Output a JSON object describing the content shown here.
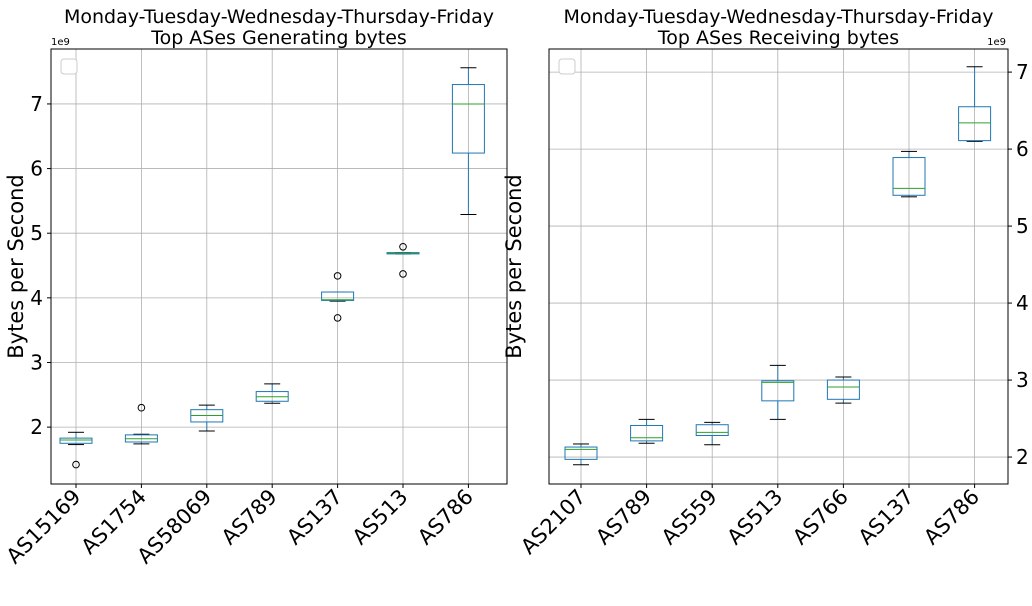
{
  "chart_data": [
    {
      "type": "box",
      "title": "Monday-Tuesday-Wednesday-Thursday-Friday\nTop ASes Generating bytes",
      "title_lines": [
        "Monday-Tuesday-Wednesday-Thursday-Friday",
        "Top ASes Generating bytes"
      ],
      "xlabel": "",
      "ylabel": "Bytes per Second",
      "y_scale_label": "1e9",
      "y_axis_side": "left",
      "ylim": [
        1.12,
        7.85
      ],
      "yticks": [
        2,
        3,
        4,
        5,
        6,
        7
      ],
      "ytick_labels": [
        "2",
        "3",
        "4",
        "5",
        "6",
        "7"
      ],
      "grid": true,
      "legend": "top-left (empty)",
      "categories": [
        "AS15169",
        "AS1754",
        "AS58069",
        "AS789",
        "AS137",
        "AS513",
        "AS786"
      ],
      "boxes": [
        {
          "whislo": 1.73,
          "q1": 1.75,
          "med": 1.8,
          "q3": 1.83,
          "whishi": 1.92,
          "fliers": [
            1.42
          ]
        },
        {
          "whislo": 1.74,
          "q1": 1.77,
          "med": 1.82,
          "q3": 1.88,
          "whishi": 1.89,
          "fliers": [
            2.3
          ]
        },
        {
          "whislo": 1.94,
          "q1": 2.08,
          "med": 2.18,
          "q3": 2.27,
          "whishi": 2.34,
          "fliers": []
        },
        {
          "whislo": 2.37,
          "q1": 2.4,
          "med": 2.47,
          "q3": 2.55,
          "whishi": 2.67,
          "fliers": []
        },
        {
          "whislo": 3.95,
          "q1": 3.96,
          "med": 3.97,
          "q3": 4.09,
          "whishi": 4.09,
          "fliers": [
            3.69,
            4.34
          ]
        },
        {
          "whislo": 4.68,
          "q1": 4.68,
          "med": 4.69,
          "q3": 4.7,
          "whishi": 4.7,
          "fliers": [
            4.37,
            4.79
          ]
        },
        {
          "whislo": 5.29,
          "q1": 6.24,
          "med": 7.0,
          "q3": 7.3,
          "whishi": 7.56,
          "fliers": []
        }
      ]
    },
    {
      "type": "box",
      "title": "Monday-Tuesday-Wednesday-Thursday-Friday\nTop ASes Receiving bytes",
      "title_lines": [
        "Monday-Tuesday-Wednesday-Thursday-Friday",
        "Top ASes Receiving bytes"
      ],
      "xlabel": "",
      "ylabel": "Bytes per Second",
      "y_scale_label": "1e9",
      "y_axis_side": "right",
      "ylim": [
        1.65,
        7.3
      ],
      "yticks": [
        2,
        3,
        4,
        5,
        6,
        7
      ],
      "ytick_labels": [
        "2",
        "3",
        "4",
        "5",
        "6",
        "7"
      ],
      "grid": true,
      "legend": "top-left (empty)",
      "categories": [
        "AS2107",
        "AS789",
        "AS559",
        "AS513",
        "AS766",
        "AS137",
        "AS786"
      ],
      "boxes": [
        {
          "whislo": 1.9,
          "q1": 1.97,
          "med": 2.1,
          "q3": 2.13,
          "whishi": 2.17,
          "fliers": []
        },
        {
          "whislo": 2.18,
          "q1": 2.21,
          "med": 2.25,
          "q3": 2.41,
          "whishi": 2.49,
          "fliers": []
        },
        {
          "whislo": 2.16,
          "q1": 2.28,
          "med": 2.32,
          "q3": 2.42,
          "whishi": 2.45,
          "fliers": []
        },
        {
          "whislo": 2.49,
          "q1": 2.73,
          "med": 2.97,
          "q3": 2.99,
          "whishi": 3.19,
          "fliers": []
        },
        {
          "whislo": 2.7,
          "q1": 2.75,
          "med": 2.91,
          "q3": 3.0,
          "whishi": 3.04,
          "fliers": []
        },
        {
          "whislo": 5.38,
          "q1": 5.4,
          "med": 5.49,
          "q3": 5.89,
          "whishi": 5.97,
          "fliers": []
        },
        {
          "whislo": 6.1,
          "q1": 6.11,
          "med": 6.34,
          "q3": 6.55,
          "whishi": 7.07,
          "fliers": []
        }
      ]
    }
  ],
  "colors": {
    "box": "#1f77b4",
    "median": "#2ca02c",
    "whisker_cap": "#000000",
    "grid": "#b0b0b0"
  }
}
